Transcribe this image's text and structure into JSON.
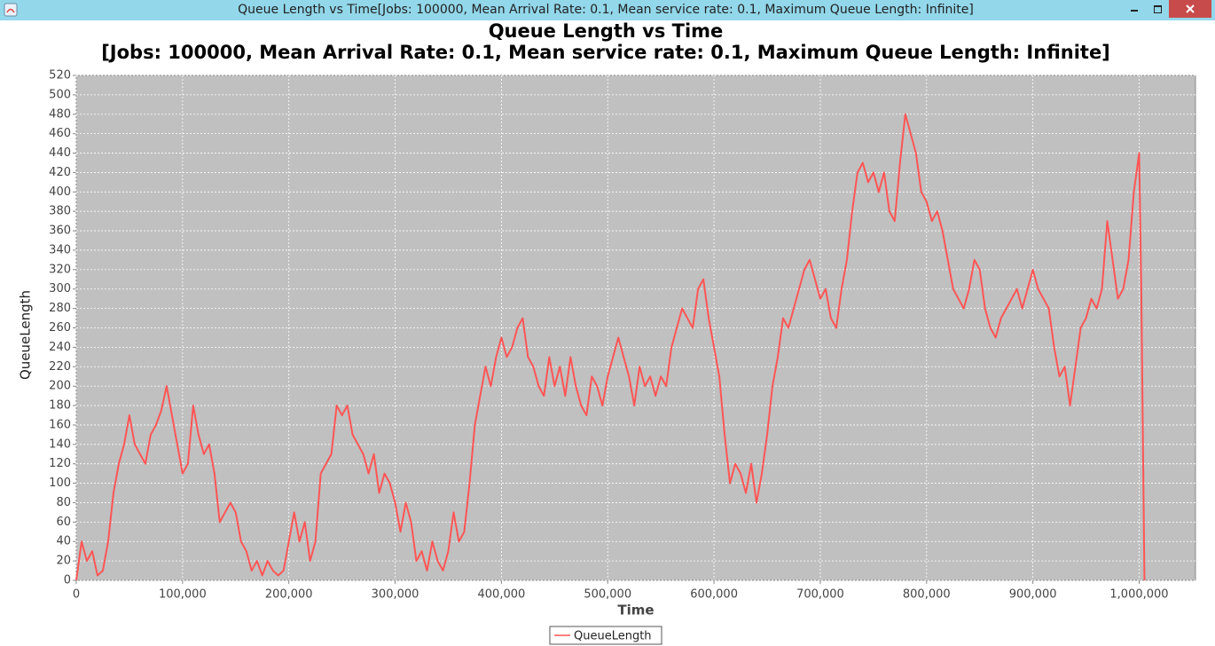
{
  "window_title": "Queue Length vs Time[Jobs: 100000, Mean Arrival Rate: 0.1, Mean service rate: 0.1, Maximum Queue Length: Infinite]",
  "chart_data": {
    "type": "line",
    "title": "Queue Length vs Time",
    "subtitle": "[Jobs: 100000, Mean Arrival Rate: 0.1, Mean service rate: 0.1, Maximum Queue Length: Infinite]",
    "x_label": "Time",
    "y_label": "QueueLength",
    "grid": true,
    "legend": "bottom",
    "xlim": [
      0,
      1053000
    ],
    "ylim": [
      0,
      520
    ],
    "xticks": [
      0,
      {
        "value": 100000,
        "label": "100,000"
      },
      {
        "value": 200000,
        "label": "200,000"
      },
      {
        "value": 300000,
        "label": "300,000"
      },
      {
        "value": 400000,
        "label": "400,000"
      },
      {
        "value": 500000,
        "label": "500,000"
      },
      {
        "value": 600000,
        "label": "600,000"
      },
      {
        "value": 700000,
        "label": "700,000"
      },
      {
        "value": 800000,
        "label": "800,000"
      },
      {
        "value": 900000,
        "label": "900,000"
      },
      {
        "value": 1000000,
        "label": "1,000,000"
      }
    ],
    "yticks": [
      0,
      20,
      40,
      60,
      80,
      100,
      120,
      140,
      160,
      180,
      200,
      220,
      240,
      260,
      280,
      300,
      320,
      340,
      360,
      380,
      400,
      420,
      440,
      460,
      480,
      500,
      520
    ],
    "x": [
      0,
      5000,
      10000,
      15000,
      20000,
      25000,
      30000,
      35000,
      40000,
      45000,
      50000,
      55000,
      60000,
      65000,
      70000,
      75000,
      80000,
      85000,
      90000,
      95000,
      100000,
      105000,
      110000,
      115000,
      120000,
      125000,
      130000,
      135000,
      140000,
      145000,
      150000,
      155000,
      160000,
      165000,
      170000,
      175000,
      180000,
      185000,
      190000,
      195000,
      200000,
      205000,
      210000,
      215000,
      220000,
      225000,
      230000,
      235000,
      240000,
      245000,
      250000,
      255000,
      260000,
      265000,
      270000,
      275000,
      280000,
      285000,
      290000,
      295000,
      300000,
      305000,
      310000,
      315000,
      320000,
      325000,
      330000,
      335000,
      340000,
      345000,
      350000,
      355000,
      360000,
      365000,
      370000,
      375000,
      380000,
      385000,
      390000,
      395000,
      400000,
      405000,
      410000,
      415000,
      420000,
      425000,
      430000,
      435000,
      440000,
      445000,
      450000,
      455000,
      460000,
      465000,
      470000,
      475000,
      480000,
      485000,
      490000,
      495000,
      500000,
      505000,
      510000,
      515000,
      520000,
      525000,
      530000,
      535000,
      540000,
      545000,
      550000,
      555000,
      560000,
      565000,
      570000,
      575000,
      580000,
      585000,
      590000,
      595000,
      600000,
      605000,
      610000,
      615000,
      620000,
      625000,
      630000,
      635000,
      640000,
      645000,
      650000,
      655000,
      660000,
      665000,
      670000,
      675000,
      680000,
      685000,
      690000,
      695000,
      700000,
      705000,
      710000,
      715000,
      720000,
      725000,
      730000,
      735000,
      740000,
      745000,
      750000,
      755000,
      760000,
      765000,
      770000,
      775000,
      780000,
      785000,
      790000,
      795000,
      800000,
      805000,
      810000,
      815000,
      820000,
      825000,
      830000,
      835000,
      840000,
      845000,
      850000,
      855000,
      860000,
      865000,
      870000,
      875000,
      880000,
      885000,
      890000,
      895000,
      900000,
      905000,
      910000,
      915000,
      920000,
      925000,
      930000,
      935000,
      940000,
      945000,
      950000,
      955000,
      960000,
      965000,
      970000,
      975000,
      980000,
      985000,
      990000,
      995000,
      1000000,
      1002000,
      1003000,
      1004000,
      1005000
    ],
    "series": [
      {
        "name": "QueueLength",
        "color": "#ff5555",
        "values": [
          0,
          40,
          20,
          30,
          5,
          10,
          40,
          90,
          120,
          140,
          170,
          140,
          130,
          120,
          150,
          160,
          175,
          200,
          170,
          140,
          110,
          120,
          180,
          150,
          130,
          140,
          110,
          60,
          70,
          80,
          70,
          40,
          30,
          10,
          20,
          5,
          20,
          10,
          5,
          10,
          40,
          70,
          40,
          60,
          20,
          40,
          110,
          120,
          130,
          180,
          170,
          180,
          150,
          140,
          130,
          110,
          130,
          90,
          110,
          100,
          80,
          50,
          80,
          60,
          20,
          30,
          10,
          40,
          20,
          10,
          30,
          70,
          40,
          50,
          100,
          160,
          190,
          220,
          200,
          230,
          250,
          230,
          240,
          260,
          270,
          230,
          220,
          200,
          190,
          230,
          200,
          220,
          190,
          230,
          200,
          180,
          170,
          210,
          200,
          180,
          210,
          230,
          250,
          230,
          210,
          180,
          220,
          200,
          210,
          190,
          210,
          200,
          240,
          260,
          280,
          270,
          260,
          300,
          310,
          270,
          240,
          210,
          150,
          100,
          120,
          110,
          90,
          120,
          80,
          110,
          150,
          200,
          230,
          270,
          260,
          280,
          300,
          320,
          330,
          310,
          290,
          300,
          270,
          260,
          300,
          330,
          380,
          420,
          430,
          410,
          420,
          400,
          420,
          380,
          370,
          430,
          480,
          460,
          440,
          400,
          390,
          370,
          380,
          360,
          330,
          300,
          290,
          280,
          300,
          330,
          320,
          280,
          260,
          250,
          270,
          280,
          290,
          300,
          280,
          300,
          320,
          300,
          290,
          280,
          240,
          210,
          220,
          180,
          220,
          260,
          270,
          290,
          280,
          300,
          370,
          330,
          290,
          300,
          330,
          400,
          440,
          300,
          200,
          100,
          0
        ]
      }
    ]
  }
}
